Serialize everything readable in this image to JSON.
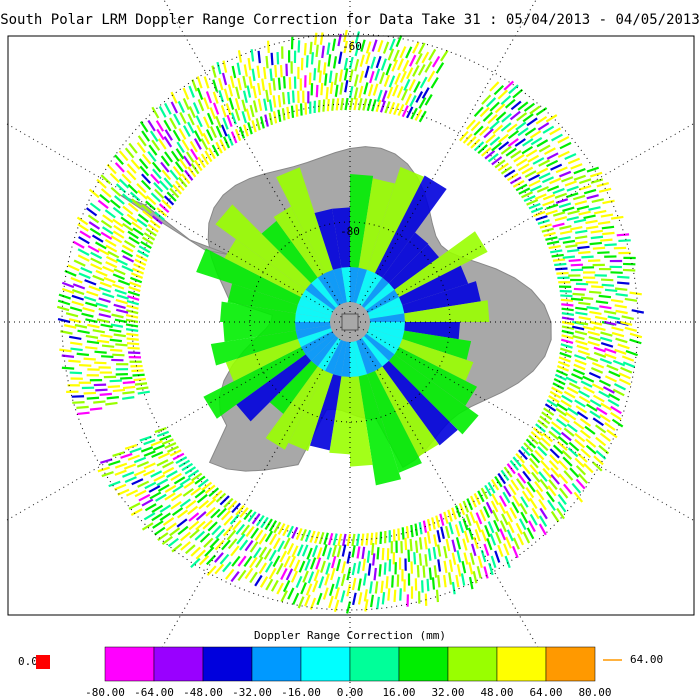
{
  "title": "South Polar LRM Doppler Range Correction for Data Take 31 : 05/04/2013 - 04/05/2013",
  "map": {
    "labels": [
      "-60",
      "-80"
    ]
  },
  "colorbar": {
    "title": "Doppler Range Correction (mm)",
    "ticks": [
      "-80.00",
      "-64.00",
      "-48.00",
      "-32.00",
      "-16.00",
      "0.00",
      "16.00",
      "32.00",
      "48.00",
      "64.00",
      "80.00"
    ],
    "colors": [
      "#ff00ff",
      "#9900ff",
      "#0000dd",
      "#0099ff",
      "#00ffff",
      "#00ff99",
      "#00ee00",
      "#99ff00",
      "#ffff00",
      "#ff9900"
    ]
  },
  "missing": {
    "label": "0.0",
    "color": "#ff0000"
  },
  "overflow": {
    "label": "64.00",
    "color": "#ff9900"
  }
}
